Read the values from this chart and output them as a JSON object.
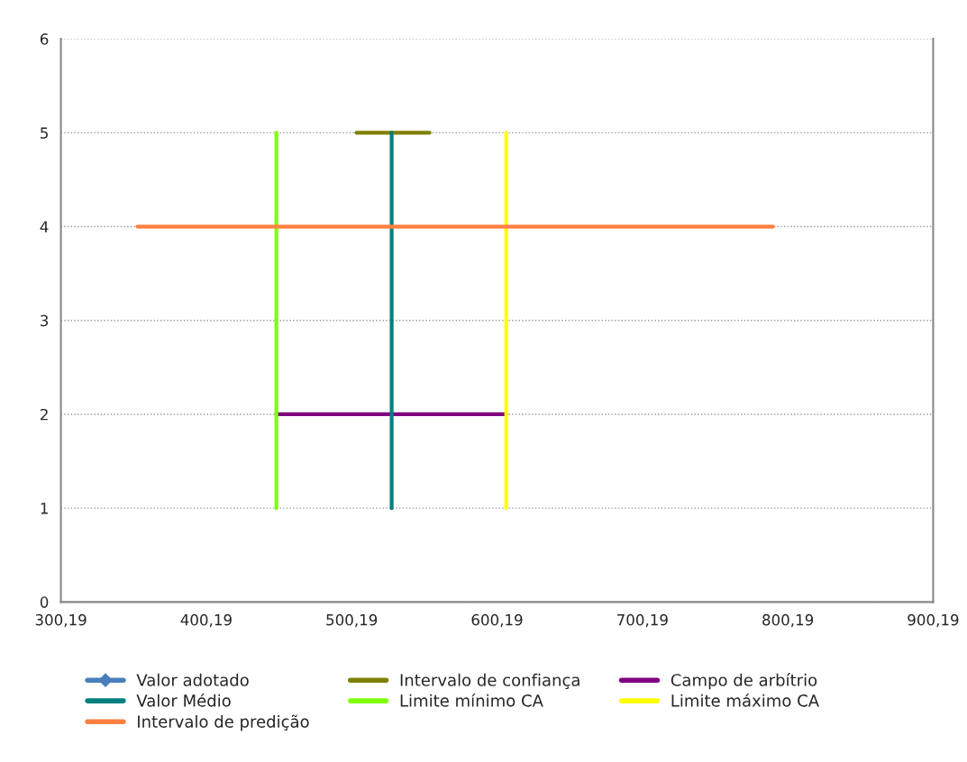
{
  "chart_data": {
    "type": "line",
    "series": [
      {
        "name": "Valor adotado",
        "color": "#4a7ebb",
        "marker": "diamond"
      },
      {
        "name": "Intervalo de confiança",
        "color": "#808000",
        "x": [
          503.5,
          553.8
        ],
        "values": [
          5,
          5
        ]
      },
      {
        "name": "Campo de arbítrio",
        "color": "#800080",
        "x": [
          448.4,
          606.5
        ],
        "values": [
          2,
          2
        ]
      },
      {
        "name": "Valor Médio",
        "color": "#008080",
        "x": [
          527.7,
          527.7
        ],
        "values": [
          1,
          5
        ]
      },
      {
        "name": "Limite mínimo CA",
        "color": "#80ff00",
        "x": [
          448.4,
          448.4
        ],
        "values": [
          1,
          5
        ]
      },
      {
        "name": "Limite máximo CA",
        "color": "#ffff00",
        "x": [
          606.5,
          606.5
        ],
        "values": [
          1,
          5
        ]
      },
      {
        "name": "Intervalo de predição",
        "color": "#ff8040",
        "x": [
          352.9,
          790.0
        ],
        "values": [
          4,
          4
        ]
      }
    ],
    "xlim": [
      300.19,
      900.19
    ],
    "xticks": [
      {
        "value": 300.19,
        "label": "300,19"
      },
      {
        "value": 400.19,
        "label": "400,19"
      },
      {
        "value": 500.19,
        "label": "500,19"
      },
      {
        "value": 600.19,
        "label": "600,19"
      },
      {
        "value": 700.19,
        "label": "700,19"
      },
      {
        "value": 800.19,
        "label": "800,19"
      },
      {
        "value": 900.19,
        "label": "900,19"
      }
    ],
    "ylim": [
      0,
      6
    ],
    "yticks": [
      0,
      1,
      2,
      3,
      4,
      5,
      6
    ],
    "grid": "y",
    "legend": "bottom",
    "line_style": "solid"
  }
}
